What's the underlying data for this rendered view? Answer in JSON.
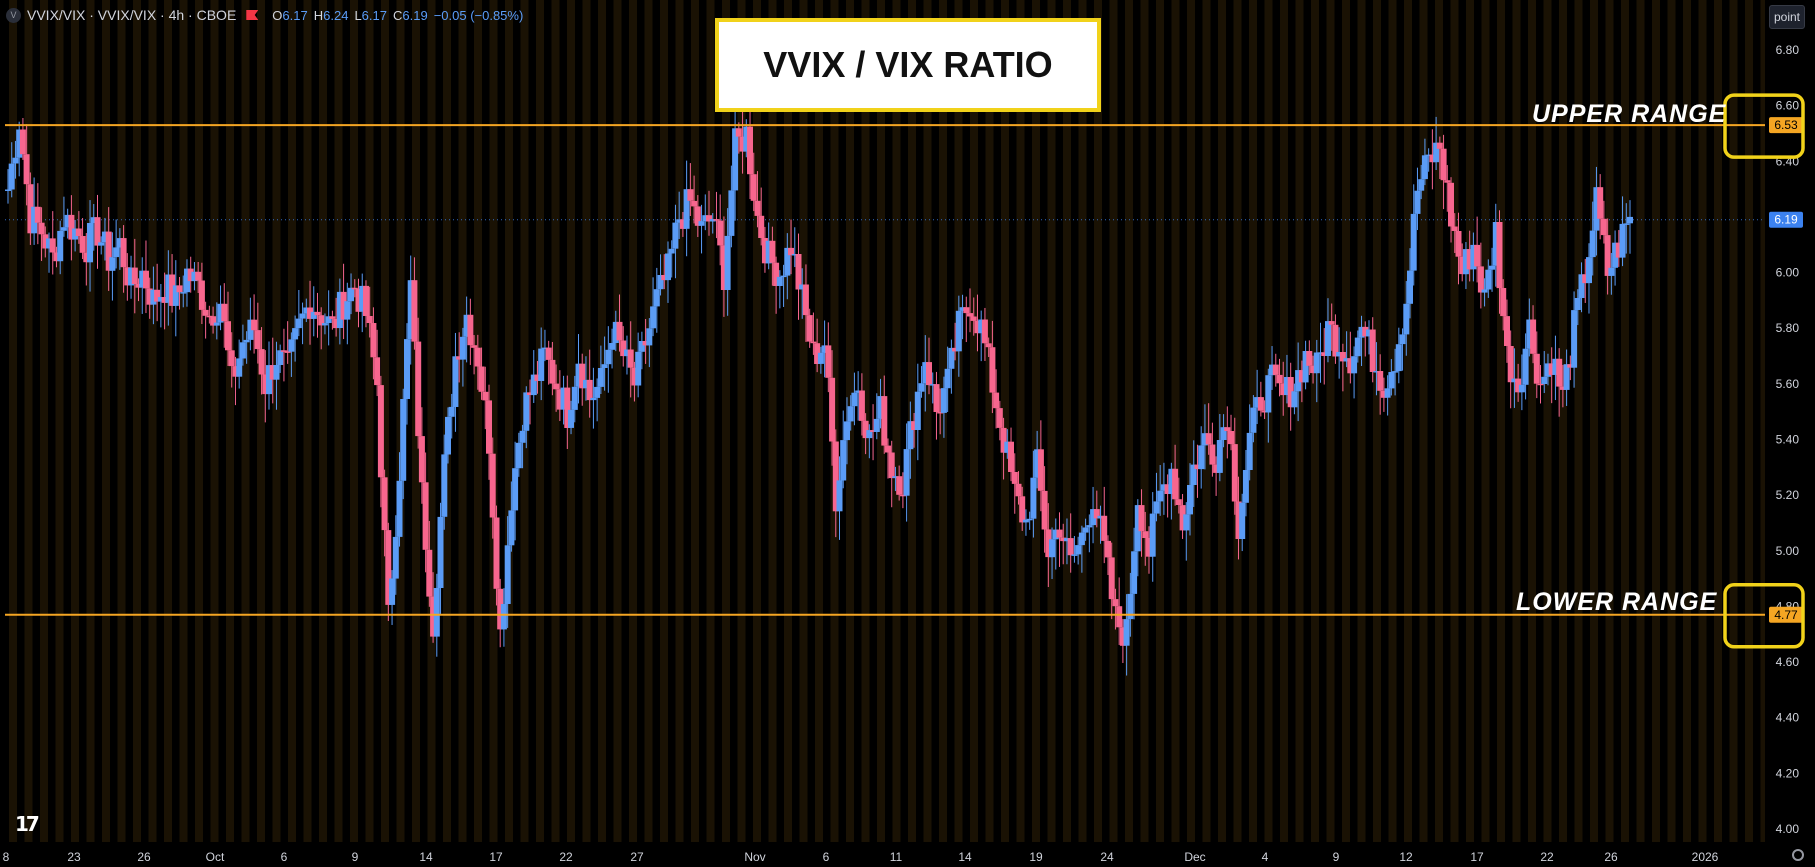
{
  "header": {
    "symbol_badge": "V",
    "symbol_line": "VVIX/VIX · VVIX/VIX · 4h · CBOE",
    "ohlc": [
      {
        "k": "O",
        "v": "6.17"
      },
      {
        "k": "H",
        "v": "6.24"
      },
      {
        "k": "L",
        "v": "6.17"
      },
      {
        "k": "C",
        "v": "6.19"
      },
      {
        "k": "",
        "v": "−0.05 (−0.85%)"
      }
    ]
  },
  "toolbar": {
    "scale_mode": "point"
  },
  "overlay": {
    "title": "VVIX / VIX RATIO",
    "upper_label": "UPPER RANGE",
    "lower_label": "LOWER RANGE"
  },
  "logo_text": "17",
  "colors": {
    "up": "#5b9cf6",
    "down": "#f7668e",
    "background": "#000000",
    "session_stripe": "#1a1204",
    "range_line": "#f5a623",
    "highlight_box": "#f1d21a",
    "last_price": "#3c82f0"
  },
  "chart_data": {
    "type": "candlestick",
    "title": "VVIX / VIX RATIO",
    "ylim": [
      4.0,
      6.9
    ],
    "y_ticks": [
      "6.80",
      "6.60",
      "6.40",
      "6.20",
      "6.00",
      "5.80",
      "5.60",
      "5.40",
      "5.20",
      "5.00",
      "4.80",
      "4.60",
      "4.40",
      "4.20",
      "4.00"
    ],
    "x_ticks": [
      "8",
      "23",
      "26",
      "Oct",
      "6",
      "9",
      "14",
      "17",
      "22",
      "27",
      "Nov",
      "6",
      "11",
      "14",
      "19",
      "24",
      "Dec",
      "4",
      "9",
      "12",
      "17",
      "22",
      "26",
      "2026"
    ],
    "price_labels": [
      {
        "value": 6.53,
        "text": "6.53",
        "kind": "upper"
      },
      {
        "value": 4.77,
        "text": "4.77",
        "kind": "lower"
      },
      {
        "value": 6.19,
        "text": "6.19",
        "kind": "last"
      }
    ],
    "upper_range": 6.53,
    "lower_range": 4.77,
    "last_close": 6.19,
    "anchors": [
      6.3,
      6.55,
      6.2,
      6.15,
      6.05,
      6.2,
      6.15,
      6.1,
      6.15,
      6.05,
      6.1,
      5.95,
      6.0,
      5.9,
      5.95,
      5.9,
      6.0,
      5.95,
      5.85,
      5.9,
      5.6,
      5.75,
      5.8,
      5.6,
      5.7,
      5.65,
      5.8,
      5.9,
      5.85,
      5.8,
      5.9,
      5.95,
      5.85,
      5.6,
      4.75,
      5.3,
      5.95,
      5.2,
      4.75,
      5.3,
      5.7,
      5.85,
      5.7,
      5.4,
      4.7,
      5.2,
      5.5,
      5.6,
      5.7,
      5.6,
      5.5,
      5.7,
      5.55,
      5.6,
      5.8,
      5.7,
      5.6,
      5.75,
      5.9,
      6.0,
      6.2,
      6.25,
      6.15,
      6.2,
      6.0,
      6.45,
      6.5,
      6.2,
      6.05,
      6.0,
      6.1,
      5.9,
      5.7,
      5.75,
      5.2,
      5.5,
      5.6,
      5.4,
      5.5,
      5.3,
      5.25,
      5.5,
      5.7,
      5.5,
      5.6,
      5.8,
      5.9,
      5.8,
      5.6,
      5.4,
      5.2,
      5.1,
      5.3,
      5.0,
      5.1,
      4.95,
      5.05,
      5.2,
      5.0,
      4.75,
      4.7,
      5.2,
      5.0,
      5.2,
      5.3,
      5.1,
      5.3,
      5.4,
      5.35,
      5.5,
      5.1,
      5.4,
      5.55,
      5.6,
      5.55,
      5.6,
      5.7,
      5.65,
      5.8,
      5.75,
      5.7,
      5.8,
      5.7,
      5.6,
      5.7,
      5.9,
      6.3,
      6.4,
      6.45,
      6.2,
      6.0,
      6.1,
      5.9,
      6.15,
      5.7,
      5.6,
      5.8,
      5.6,
      5.7,
      5.55,
      5.8,
      6.0,
      6.25,
      6.0,
      6.1,
      6.2
    ]
  }
}
